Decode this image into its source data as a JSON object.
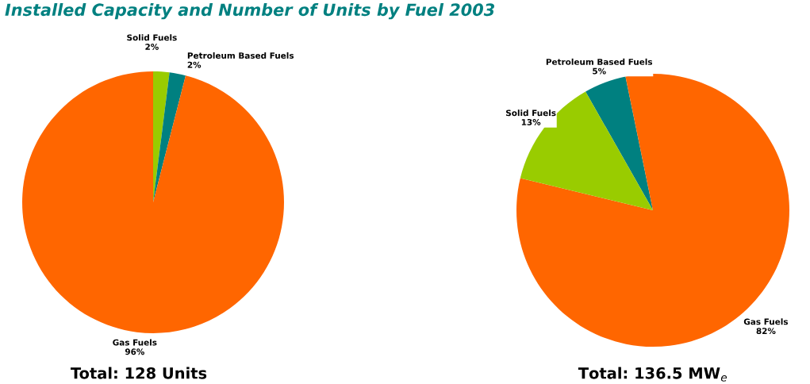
{
  "chart_data": [
    {
      "type": "pie",
      "title": "Installed Capacity and Number of Units by Fuel 2003",
      "xlabel": "Total: 128 Units",
      "categories": [
        "Solid Fuels",
        "Petroleum Based Fuels",
        "Gas Fuels"
      ],
      "values": [
        2,
        2,
        96
      ],
      "value_labels": [
        "2%",
        "2%",
        "96%"
      ],
      "colors": [
        "#99cc00",
        "#008080",
        "#ff6600"
      ]
    },
    {
      "type": "pie",
      "xlabel": "Total: 136.5 MW$_{e}$",
      "categories": [
        "Petroleum Based Fuels",
        "Gas Fuels",
        "Solid Fuels"
      ],
      "values": [
        5,
        82,
        13
      ],
      "value_labels": [
        "5%",
        "82%",
        "13%"
      ],
      "colors": [
        "#008080",
        "#ff6600",
        "#99cc00"
      ]
    }
  ]
}
